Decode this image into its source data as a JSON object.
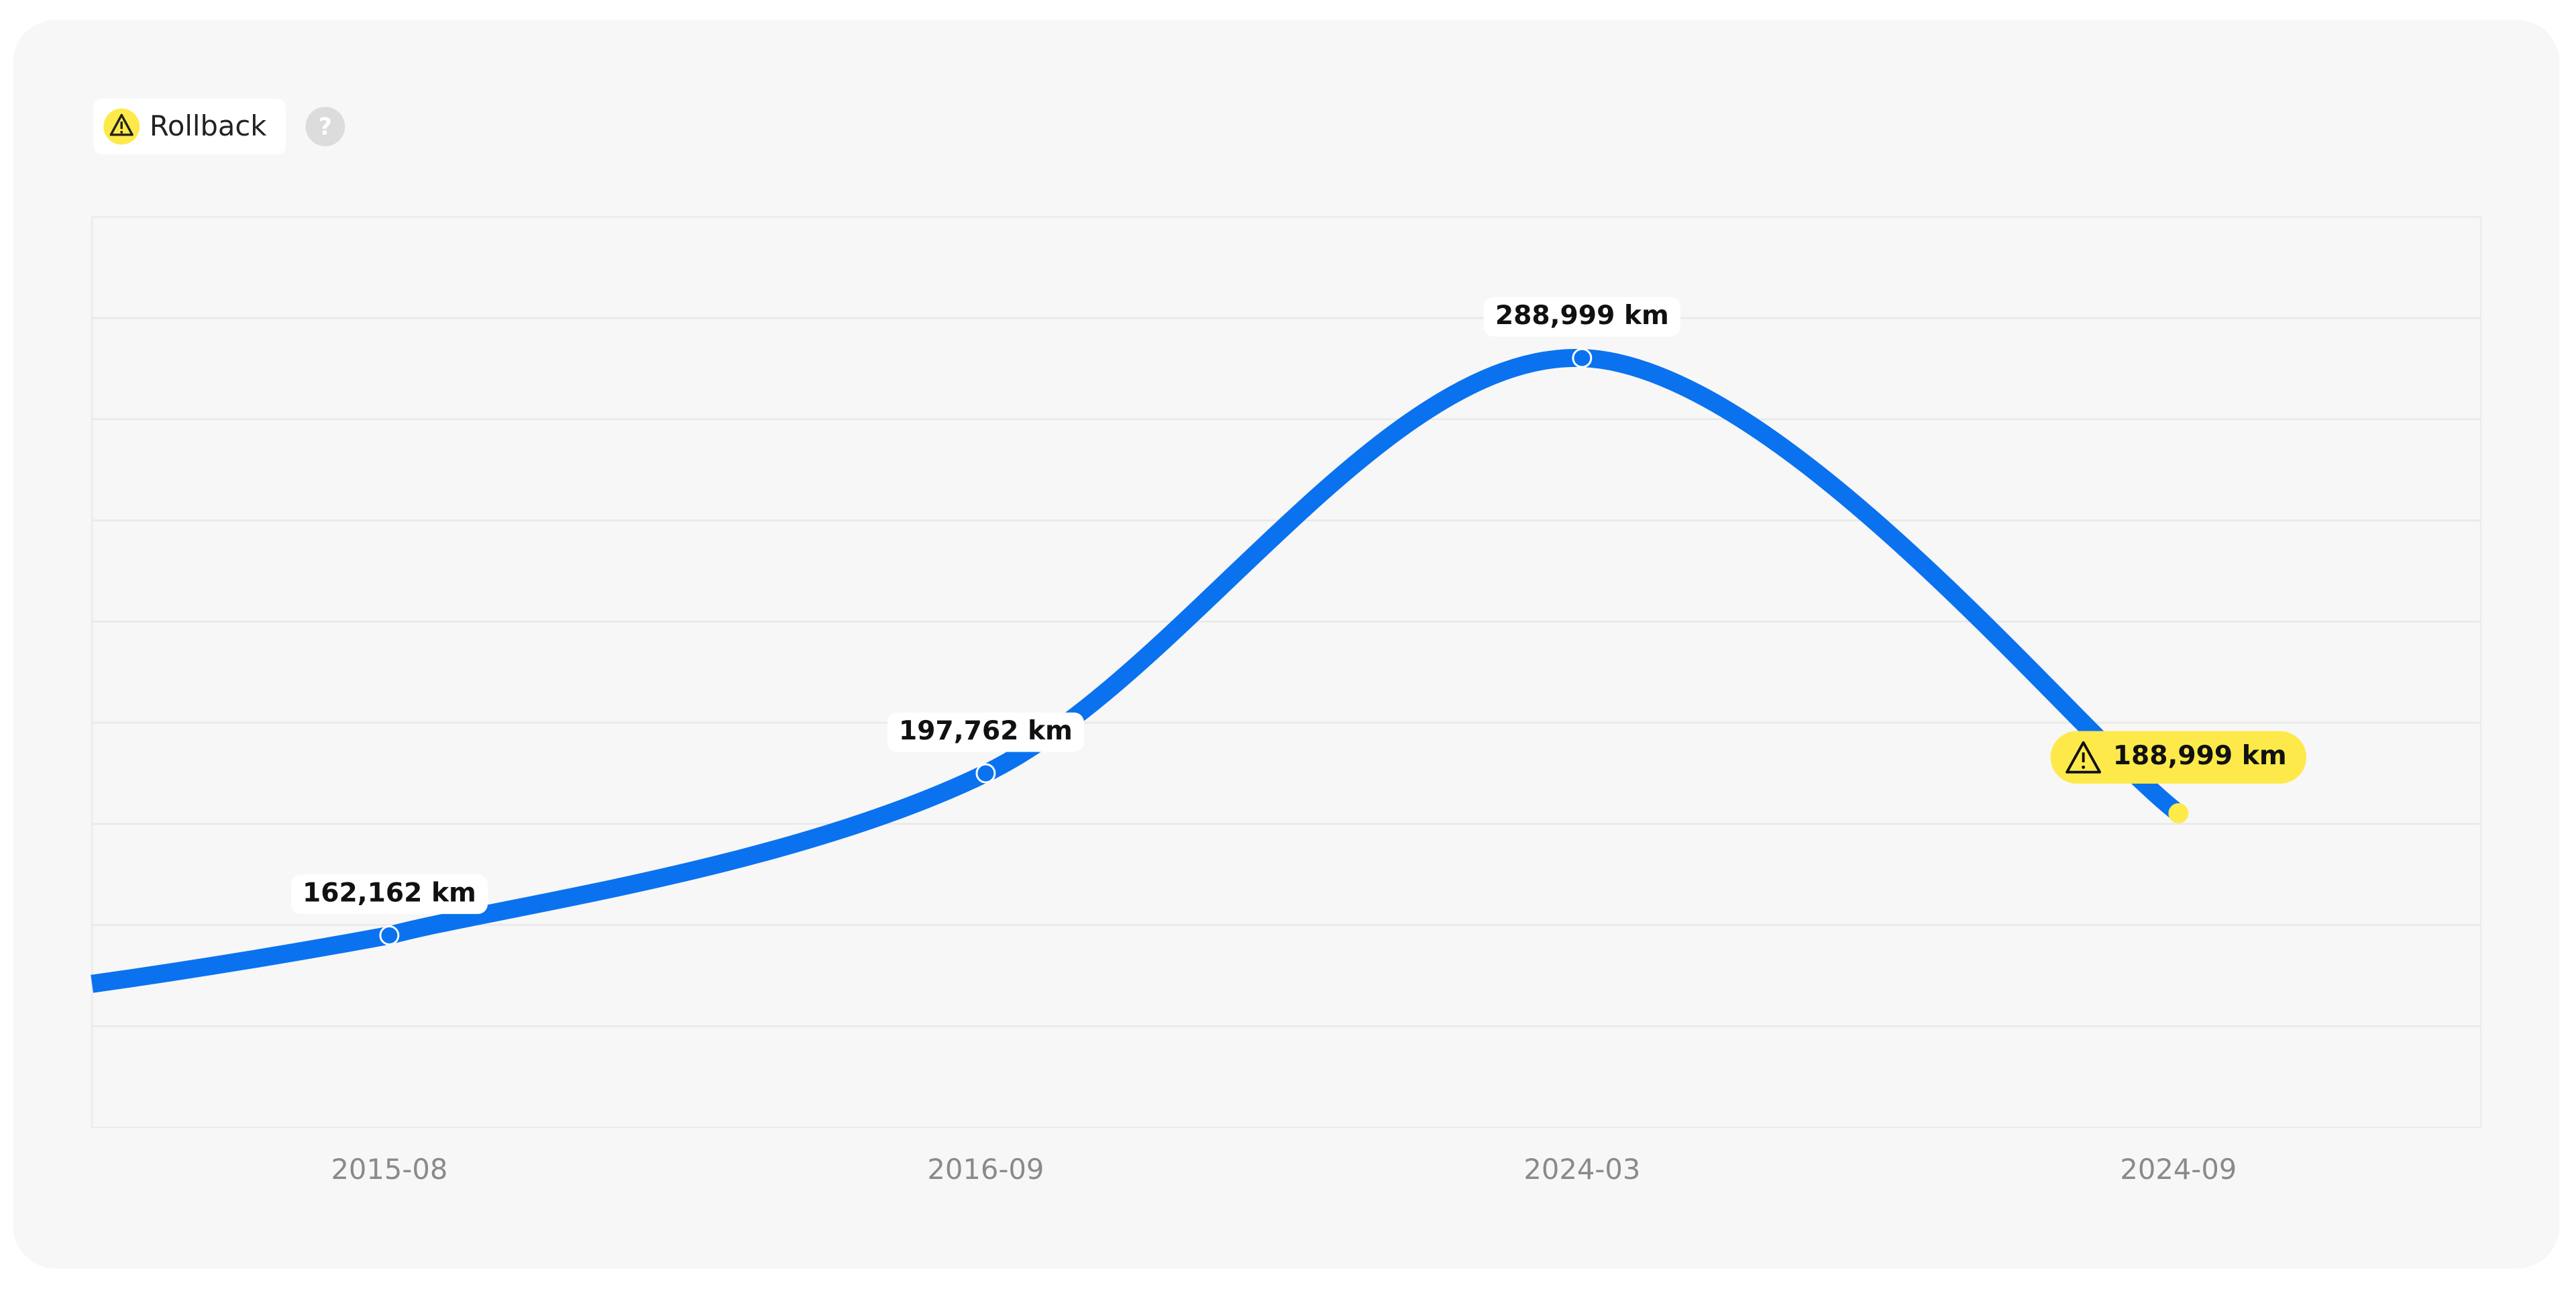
{
  "chart_data": {
    "type": "line",
    "status": "Rollback",
    "help_icon": "?",
    "categories": [
      "2015-08",
      "2016-09",
      "2024-03",
      "2024-09"
    ],
    "values": [
      162162,
      197762,
      288999,
      188999
    ],
    "value_labels": [
      "162,162 km",
      "197,762 km",
      "288,999 km",
      "188,999 km"
    ],
    "color": "#0a72ef",
    "warning_color": "#fdea4a",
    "ylim": [
      120000,
      320000
    ],
    "grid": true
  }
}
